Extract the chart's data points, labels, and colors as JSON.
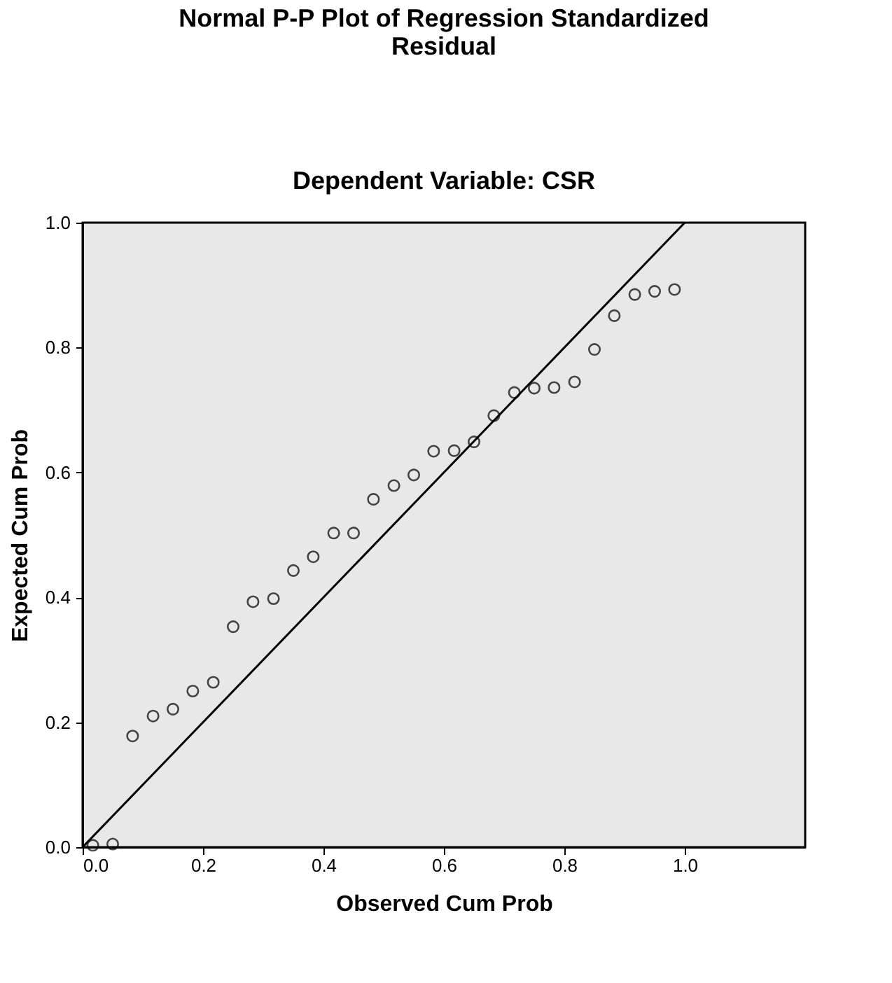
{
  "chart_data": {
    "type": "scatter",
    "title": [
      "Normal P-P Plot of Regression Standardized",
      "Residual"
    ],
    "subtitle": "Dependent Variable: CSR",
    "xlabel": "Observed Cum Prob",
    "ylabel": "Expected Cum Prob",
    "grid": false,
    "xlim": [
      0,
      1.2
    ],
    "ylim": [
      0,
      1
    ],
    "xticks": [
      {
        "value": 0,
        "label": "0.0"
      },
      {
        "value": 0.2,
        "label": "0.2"
      },
      {
        "value": 0.4,
        "label": "0.4"
      },
      {
        "value": 0.6,
        "label": "0.6"
      },
      {
        "value": 0.8,
        "label": "0.8"
      },
      {
        "value": 1,
        "label": "1.0"
      }
    ],
    "yticks": [
      {
        "value": 0,
        "label": "0.0"
      },
      {
        "value": 0.2,
        "label": "0.2"
      },
      {
        "value": 0.4,
        "label": "0.4"
      },
      {
        "value": 0.6,
        "label": "0.6"
      },
      {
        "value": 0.8,
        "label": "0.8"
      },
      {
        "value": 1,
        "label": "1.0"
      }
    ],
    "series": [
      {
        "color": "#000000",
        "marker": "circle",
        "x": [
          0.017,
          0.05,
          0.083,
          0.117,
          0.15,
          0.183,
          0.217,
          0.25,
          0.283,
          0.317,
          0.35,
          0.383,
          0.417,
          0.45,
          0.483,
          0.517,
          0.55,
          0.583,
          0.617,
          0.65,
          0.683,
          0.717,
          0.75,
          0.783,
          0.817,
          0.85,
          0.883,
          0.917,
          0.95,
          0.983
        ],
        "values": [
          0.003,
          0.005,
          0.178,
          0.21,
          0.221,
          0.25,
          0.264,
          0.353,
          0.393,
          0.398,
          0.443,
          0.465,
          0.503,
          0.503,
          0.557,
          0.579,
          0.596,
          0.634,
          0.635,
          0.649,
          0.691,
          0.728,
          0.735,
          0.736,
          0.745,
          0.797,
          0.851,
          0.885,
          0.89,
          0.893
        ]
      },
      {
        "type": "line",
        "color": "#000000",
        "marker": "none",
        "line_style": "solid",
        "x": [
          0,
          1
        ],
        "values": [
          0,
          1
        ]
      }
    ]
  }
}
